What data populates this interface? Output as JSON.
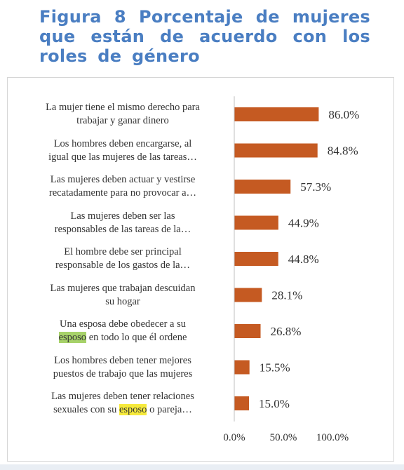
{
  "title": "Figura 8 Porcentaje de mujeres que están de acuerdo con los roles de género",
  "chart_data": {
    "type": "bar",
    "orientation": "horizontal",
    "categories": [
      [
        "La mujer tiene el mismo derecho para",
        "trabajar y ganar dinero"
      ],
      [
        "Los hombres deben encargarse, al",
        "igual que las mujeres de las tareas…"
      ],
      [
        "Las mujeres deben actuar y vestirse",
        "recatadamente para no provocar a…"
      ],
      [
        "Las mujeres deben ser las",
        "responsables de las tareas de la…"
      ],
      [
        "El hombre debe ser principal",
        "responsable de los gastos de la…"
      ],
      [
        "Las mujeres que trabajan descuidan",
        "su hogar"
      ],
      [
        "Una esposa debe obedecer a su",
        "esposo en todo lo que él ordene"
      ],
      [
        "Los hombres deben tener mejores",
        "puestos de trabajo que las mujeres"
      ],
      [
        "Las mujeres deben tener relaciones",
        "sexuales con su esposo o pareja…"
      ]
    ],
    "highlights": [
      {
        "category": 6,
        "line": 1,
        "word": "esposo",
        "color": "#a7d26a"
      },
      {
        "category": 8,
        "line": 1,
        "word": "esposo",
        "color": "#f6ea3c"
      }
    ],
    "values": [
      86.0,
      84.8,
      57.3,
      44.9,
      44.8,
      28.1,
      26.8,
      15.5,
      15.0
    ],
    "data_labels": [
      "86.0%",
      "84.8%",
      "57.3%",
      "44.9%",
      "44.8%",
      "28.1%",
      "26.8%",
      "15.5%",
      "15.0%"
    ],
    "x_ticks": [
      0,
      50,
      100
    ],
    "x_tick_labels": [
      "0.0%",
      "50.0%",
      "100.0%"
    ],
    "xlim": [
      0,
      100
    ],
    "bar_color": "#c55a22",
    "grid": false,
    "legend": "none"
  }
}
